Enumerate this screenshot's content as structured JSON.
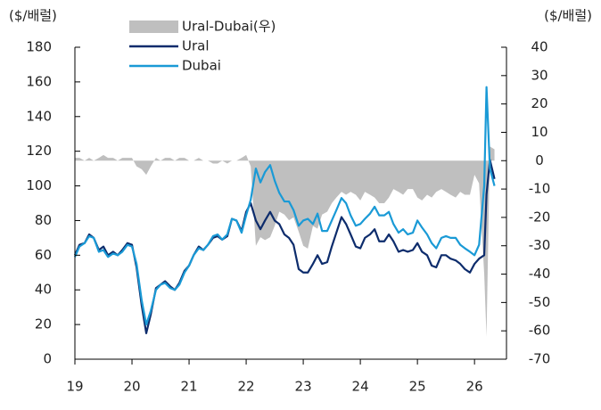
{
  "chart_data": {
    "type": "line",
    "y_label": "($/배럴)",
    "y2_label": "($/배럴)",
    "x": [
      19,
      19.08,
      19.17,
      19.25,
      19.33,
      19.42,
      19.5,
      19.58,
      19.67,
      19.75,
      19.83,
      19.92,
      20,
      20.08,
      20.17,
      20.25,
      20.33,
      20.42,
      20.5,
      20.58,
      20.67,
      20.75,
      20.83,
      20.92,
      21,
      21.08,
      21.17,
      21.25,
      21.33,
      21.42,
      21.5,
      21.58,
      21.67,
      21.75,
      21.83,
      21.92,
      22,
      22.08,
      22.17,
      22.25,
      22.33,
      22.42,
      22.5,
      22.58,
      22.67,
      22.75,
      22.83,
      22.92,
      23,
      23.08,
      23.17,
      23.25,
      23.33,
      23.42,
      23.5,
      23.58,
      23.67,
      23.75,
      23.83,
      23.92,
      24,
      24.08,
      24.17,
      24.25,
      24.33,
      24.42,
      24.5,
      24.58,
      24.67,
      24.75,
      24.83,
      24.92,
      25,
      25.08,
      25.17,
      25.25,
      25.33,
      25.42,
      25.5,
      25.58,
      25.67,
      25.75,
      25.83,
      25.92,
      26,
      26.08,
      26.17,
      26.21,
      26.27,
      26.35
    ],
    "series": [
      {
        "name": "Ural-Dubai(우)",
        "color": "#bfbfbf",
        "axis": "y2",
        "kind": "area",
        "values": [
          1,
          1,
          0,
          1,
          0,
          1,
          2,
          1,
          1,
          0,
          1,
          1,
          1,
          -2,
          -3,
          -5,
          -2,
          1,
          0,
          1,
          1,
          0,
          1,
          1,
          0,
          0,
          1,
          0,
          0,
          -1,
          -1,
          0,
          -1,
          0,
          0,
          1,
          2,
          -2,
          -30,
          -27,
          -28,
          -27,
          -23,
          -18,
          -19,
          -21,
          -20,
          -25,
          -30,
          -31,
          -23,
          -24,
          -19,
          -18,
          -15,
          -13,
          -11,
          -12,
          -11,
          -12,
          -14,
          -11,
          -12,
          -13,
          -15,
          -15,
          -13,
          -10,
          -11,
          -12,
          -10,
          -10,
          -13,
          -14,
          -12,
          -13,
          -11,
          -10,
          -11,
          -12,
          -13,
          -11,
          -12,
          -12,
          -5,
          -8,
          -40,
          -62,
          5,
          4
        ]
      },
      {
        "name": "Ural",
        "color": "#0d2c6c",
        "values": [
          60,
          66,
          67,
          72,
          70,
          63,
          65,
          60,
          62,
          60,
          63,
          67,
          66,
          53,
          31,
          15,
          26,
          41,
          43,
          45,
          42,
          40,
          44,
          51,
          54,
          60,
          65,
          63,
          66,
          70,
          71,
          69,
          71,
          81,
          80,
          74,
          85,
          90,
          80,
          75,
          80,
          85,
          80,
          78,
          72,
          70,
          66,
          52,
          50,
          50,
          55,
          60,
          55,
          56,
          65,
          73,
          82,
          78,
          72,
          65,
          64,
          70,
          72,
          75,
          68,
          68,
          72,
          68,
          62,
          63,
          62,
          63,
          67,
          62,
          60,
          54,
          53,
          60,
          60,
          58,
          57,
          55,
          52,
          50,
          55,
          58,
          60,
          95,
          115,
          104
        ]
      },
      {
        "name": "Dubai",
        "color": "#1a9ad6",
        "values": [
          59,
          65,
          67,
          71,
          70,
          62,
          63,
          59,
          61,
          60,
          62,
          66,
          65,
          55,
          34,
          20,
          28,
          40,
          43,
          44,
          41,
          40,
          43,
          50,
          54,
          60,
          64,
          63,
          66,
          71,
          72,
          69,
          72,
          81,
          80,
          73,
          83,
          92,
          110,
          102,
          108,
          112,
          103,
          96,
          91,
          91,
          86,
          77,
          80,
          81,
          78,
          84,
          74,
          74,
          80,
          86,
          93,
          90,
          83,
          77,
          78,
          81,
          84,
          88,
          83,
          83,
          85,
          78,
          73,
          75,
          72,
          73,
          80,
          76,
          72,
          67,
          64,
          70,
          71,
          70,
          70,
          66,
          64,
          62,
          60,
          66,
          100,
          157,
          110,
          100
        ]
      }
    ],
    "xlim": [
      19,
      26.56
    ],
    "xticks": [
      19,
      20,
      21,
      22,
      23,
      24,
      25,
      26
    ],
    "ylim": [
      0,
      180
    ],
    "yticks": [
      0,
      20,
      40,
      60,
      80,
      100,
      120,
      140,
      160,
      180
    ],
    "y2lim": [
      -70,
      40
    ],
    "y2ticks": [
      -70,
      -60,
      -50,
      -40,
      -30,
      -20,
      -10,
      0,
      10,
      20,
      30,
      40
    ]
  }
}
